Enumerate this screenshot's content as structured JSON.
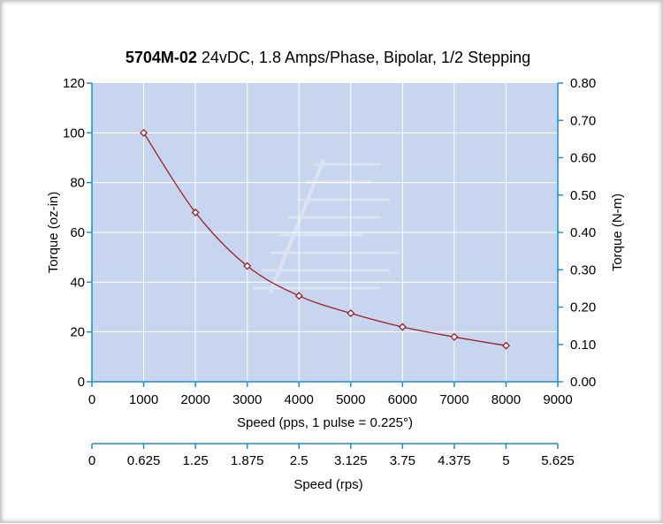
{
  "chart_data": {
    "type": "line",
    "title_bold": "5704M-02",
    "title_rest": " 24vDC, 1.8 Amps/Phase, Bipolar, 1/2 Stepping",
    "xlabel": "Speed (pps, 1 pulse = 0.225°)",
    "ylabel_left": "Torque (oz-in)",
    "ylabel_right": "Torque (N-m)",
    "xlabel_secondary": "Speed (rps)",
    "xlim": [
      0,
      9000
    ],
    "ylim": [
      0,
      120
    ],
    "ylim_right": [
      0,
      0.8
    ],
    "x_ticks": [
      "0",
      "1000",
      "2000",
      "3000",
      "4000",
      "5000",
      "6000",
      "7000",
      "8000",
      "9000"
    ],
    "y_ticks": [
      "0",
      "20",
      "40",
      "60",
      "80",
      "100",
      "120"
    ],
    "y_right_ticks": [
      "0.00",
      "0.10",
      "0.20",
      "0.30",
      "0.40",
      "0.50",
      "0.60",
      "0.70",
      "0.80"
    ],
    "x_secondary_ticks": [
      "0",
      "0.625",
      "1.25",
      "1.875",
      "2.5",
      "3.125",
      "3.75",
      "4.375",
      "5",
      "5.625"
    ],
    "grid": true,
    "series": [
      {
        "x": [
          1000,
          2000,
          3000,
          4000,
          5000,
          6000,
          7000,
          8000
        ],
        "y": [
          100,
          68,
          46.5,
          34.5,
          27.5,
          22,
          18,
          14.5
        ]
      }
    ],
    "colors": {
      "plot_bg": "#c8d5ee",
      "grid": "#ffffff",
      "axis": "#1a8fd0",
      "line": "#9b1f24"
    }
  }
}
